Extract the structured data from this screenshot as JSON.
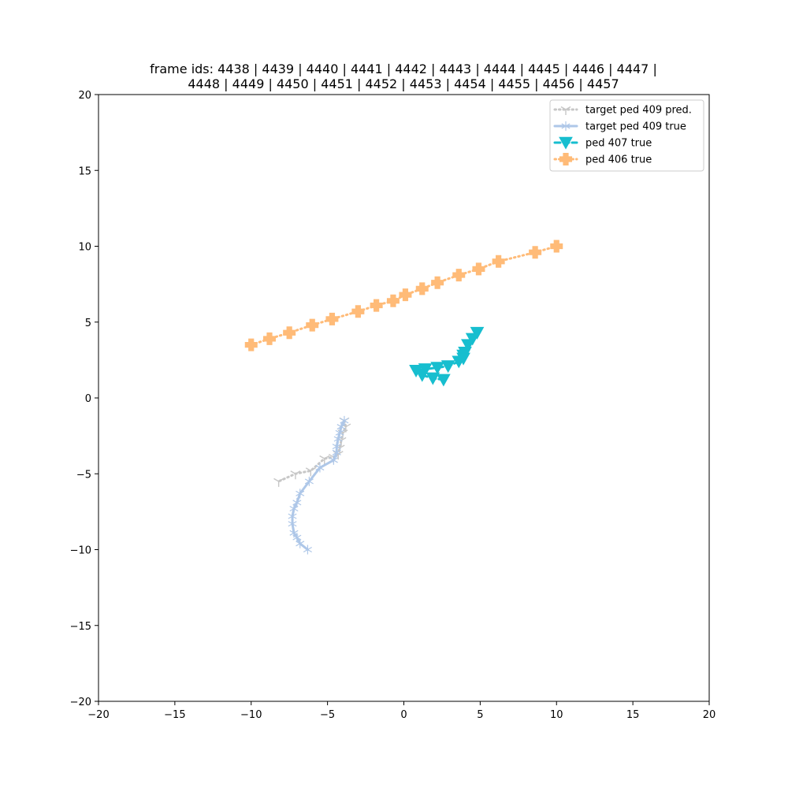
{
  "chart_data": {
    "type": "line",
    "title_line1": "frame ids: 4438 | 4439 | 4440 | 4441 | 4442 | 4443 | 4444 | 4445 | 4446 | 4447 |",
    "title_line2": "4448 | 4449 | 4450 | 4451 | 4452 | 4453 | 4454 | 4455 | 4456 | 4457",
    "xlabel": "",
    "ylabel": "",
    "xlim": [
      -20,
      20
    ],
    "ylim": [
      -20,
      20
    ],
    "xticks": [
      -20,
      -15,
      -10,
      -5,
      0,
      5,
      10,
      15,
      20
    ],
    "yticks": [
      -20,
      -15,
      -10,
      -5,
      0,
      5,
      10,
      15,
      20
    ],
    "xtick_labels": [
      "−20",
      "−15",
      "−10",
      "−5",
      "0",
      "5",
      "10",
      "15",
      "20"
    ],
    "ytick_labels": [
      "−20",
      "−15",
      "−10",
      "−5",
      "0",
      "5",
      "10",
      "15",
      "20"
    ],
    "grid": false,
    "legend_position": "top-right",
    "series": [
      {
        "name": "target ped 409 pred.",
        "color": "#c7c7c7",
        "line_style": "dotted",
        "marker": "tri-down",
        "x": [
          -3.9,
          -3.8,
          -4.0,
          -4.1,
          -4.2,
          -4.3,
          -4.6,
          -5.2,
          -6.1,
          -7.1,
          -8.2
        ],
        "y": [
          -1.5,
          -1.9,
          -2.3,
          -2.8,
          -3.3,
          -3.7,
          -3.9,
          -4.0,
          -4.8,
          -5.0,
          -5.5
        ]
      },
      {
        "name": "target ped 409 true",
        "color": "#aec7e8",
        "line_style": "solid",
        "marker": "star",
        "x": [
          -3.9,
          -4.1,
          -4.2,
          -4.3,
          -4.4,
          -4.4,
          -4.6,
          -5.5,
          -6.2,
          -6.8,
          -7.0,
          -7.2,
          -7.3,
          -7.3,
          -7.2,
          -7.0,
          -6.8,
          -6.3
        ],
        "y": [
          -1.5,
          -1.9,
          -2.3,
          -2.7,
          -3.2,
          -3.6,
          -4.1,
          -4.6,
          -5.5,
          -6.3,
          -6.9,
          -7.3,
          -7.8,
          -8.3,
          -8.9,
          -9.2,
          -9.6,
          -10.0
        ]
      },
      {
        "name": "ped 407 true",
        "color": "#17becf",
        "line_style": "dashed",
        "marker": "triangle-down",
        "x": [
          4.8,
          4.5,
          4.2,
          4.0,
          3.9,
          3.9,
          3.6,
          2.9,
          2.2,
          1.4,
          0.8,
          1.2,
          1.9,
          2.6
        ],
        "y": [
          4.3,
          3.9,
          3.5,
          3.0,
          2.8,
          2.6,
          2.4,
          2.1,
          2.0,
          1.9,
          1.8,
          1.5,
          1.3,
          1.2
        ]
      },
      {
        "name": "ped 406 true",
        "color": "#ffbb78",
        "line_style": "dotted",
        "marker": "plus",
        "x": [
          -10.0,
          -8.8,
          -7.5,
          -6.0,
          -4.7,
          -3.0,
          -1.8,
          -0.7,
          0.1,
          1.2,
          2.2,
          3.6,
          4.9,
          6.2,
          8.6,
          10.0
        ],
        "y": [
          3.5,
          3.9,
          4.3,
          4.8,
          5.2,
          5.7,
          6.1,
          6.4,
          6.8,
          7.2,
          7.6,
          8.1,
          8.5,
          9.0,
          9.6,
          10.0
        ]
      }
    ]
  }
}
